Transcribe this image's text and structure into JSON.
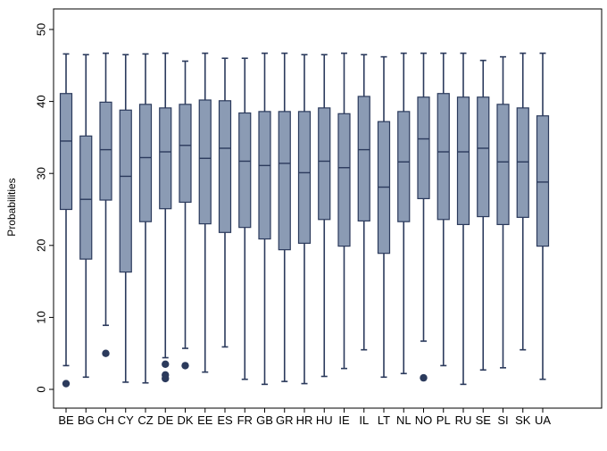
{
  "chart_data": {
    "type": "box",
    "title": "",
    "xlabel": "",
    "ylabel": "Probabilities",
    "ylim": [
      0,
      50
    ],
    "yticks": [
      0,
      10,
      20,
      30,
      40,
      50
    ],
    "grid": false,
    "colors": {
      "box_fill": "#8b9bb4",
      "box_stroke": "#2b3a5c",
      "whisker": "#2b3a5c",
      "outlier": "#2b3a5c",
      "frame": "#000000"
    },
    "categories": [
      "BE",
      "BG",
      "CH",
      "CY",
      "CZ",
      "DE",
      "DK",
      "EE",
      "ES",
      "FR",
      "GB",
      "GR",
      "HR",
      "HU",
      "IE",
      "IL",
      "LT",
      "NL",
      "NO",
      "PL",
      "RU",
      "SE",
      "SI",
      "SK",
      "UA"
    ],
    "boxes": [
      {
        "min": 3.3,
        "q1": 25.0,
        "median": 34.5,
        "q3": 41.1,
        "max": 46.6,
        "outliers": [
          0.8
        ]
      },
      {
        "min": 1.7,
        "q1": 18.1,
        "median": 26.4,
        "q3": 35.2,
        "max": 46.5,
        "outliers": []
      },
      {
        "min": 8.9,
        "q1": 26.3,
        "median": 33.3,
        "q3": 39.9,
        "max": 46.7,
        "outliers": [
          5.0
        ]
      },
      {
        "min": 1.0,
        "q1": 16.3,
        "median": 29.6,
        "q3": 38.8,
        "max": 46.5,
        "outliers": []
      },
      {
        "min": 0.9,
        "q1": 23.3,
        "median": 32.2,
        "q3": 39.6,
        "max": 46.6,
        "outliers": []
      },
      {
        "min": 4.4,
        "q1": 25.1,
        "median": 33.0,
        "q3": 39.1,
        "max": 46.7,
        "outliers": [
          3.5,
          2.0,
          1.5
        ]
      },
      {
        "min": 5.7,
        "q1": 26.0,
        "median": 33.9,
        "q3": 39.6,
        "max": 45.6,
        "outliers": [
          3.3
        ]
      },
      {
        "min": 2.4,
        "q1": 23.0,
        "median": 32.1,
        "q3": 40.2,
        "max": 46.7,
        "outliers": []
      },
      {
        "min": 5.9,
        "q1": 21.8,
        "median": 33.5,
        "q3": 40.1,
        "max": 46.0,
        "outliers": []
      },
      {
        "min": 1.4,
        "q1": 22.5,
        "median": 31.7,
        "q3": 38.4,
        "max": 46.0,
        "outliers": []
      },
      {
        "min": 0.7,
        "q1": 20.9,
        "median": 31.1,
        "q3": 38.6,
        "max": 46.7,
        "outliers": []
      },
      {
        "min": 1.1,
        "q1": 19.4,
        "median": 31.4,
        "q3": 38.6,
        "max": 46.7,
        "outliers": []
      },
      {
        "min": 0.8,
        "q1": 20.3,
        "median": 30.1,
        "q3": 38.6,
        "max": 46.5,
        "outliers": []
      },
      {
        "min": 1.8,
        "q1": 23.6,
        "median": 31.7,
        "q3": 39.1,
        "max": 46.5,
        "outliers": []
      },
      {
        "min": 2.9,
        "q1": 19.9,
        "median": 30.8,
        "q3": 38.3,
        "max": 46.7,
        "outliers": []
      },
      {
        "min": 5.5,
        "q1": 23.4,
        "median": 33.3,
        "q3": 40.7,
        "max": 46.5,
        "outliers": []
      },
      {
        "min": 1.7,
        "q1": 18.9,
        "median": 28.1,
        "q3": 37.2,
        "max": 46.2,
        "outliers": []
      },
      {
        "min": 2.2,
        "q1": 23.3,
        "median": 31.6,
        "q3": 38.6,
        "max": 46.7,
        "outliers": []
      },
      {
        "min": 6.7,
        "q1": 26.5,
        "median": 34.8,
        "q3": 40.6,
        "max": 46.7,
        "outliers": [
          1.6
        ]
      },
      {
        "min": 3.3,
        "q1": 23.6,
        "median": 33.0,
        "q3": 41.1,
        "max": 46.7,
        "outliers": []
      },
      {
        "min": 0.7,
        "q1": 22.9,
        "median": 33.0,
        "q3": 40.6,
        "max": 46.7,
        "outliers": []
      },
      {
        "min": 2.7,
        "q1": 24.0,
        "median": 33.5,
        "q3": 40.6,
        "max": 45.7,
        "outliers": []
      },
      {
        "min": 3.0,
        "q1": 22.9,
        "median": 31.6,
        "q3": 39.6,
        "max": 46.2,
        "outliers": []
      },
      {
        "min": 5.5,
        "q1": 23.9,
        "median": 31.6,
        "q3": 39.1,
        "max": 46.7,
        "outliers": []
      },
      {
        "min": 1.4,
        "q1": 19.9,
        "median": 28.8,
        "q3": 38.0,
        "max": 46.7,
        "outliers": []
      }
    ]
  }
}
